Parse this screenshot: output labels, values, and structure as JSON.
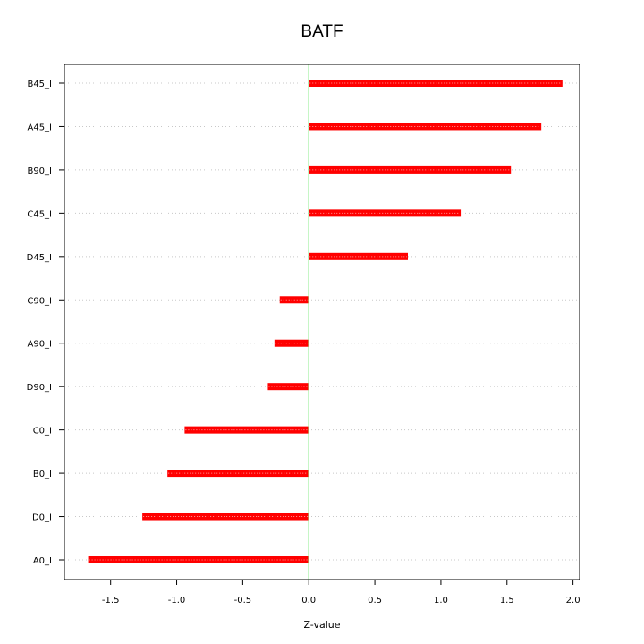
{
  "chart_data": {
    "type": "bar",
    "orientation": "horizontal",
    "title": "BATF",
    "xlabel": "Z-value",
    "ylabel": "",
    "xlim": [
      -1.85,
      2.05
    ],
    "xticks": [
      -1.5,
      -1.0,
      -0.5,
      0.0,
      0.5,
      1.0,
      1.5,
      2.0
    ],
    "xtick_labels": [
      "-1.5",
      "-1.0",
      "-0.5",
      "0.0",
      "0.5",
      "1.0",
      "1.5",
      "2.0"
    ],
    "categories": [
      "B45_I",
      "A45_I",
      "B90_I",
      "C45_I",
      "D45_I",
      "C90_I",
      "A90_I",
      "D90_I",
      "C0_I",
      "B0_I",
      "D0_I",
      "A0_I"
    ],
    "values": [
      1.92,
      1.76,
      1.53,
      1.15,
      0.75,
      -0.22,
      -0.26,
      -0.31,
      -0.94,
      -1.07,
      -1.26,
      -1.67
    ],
    "grid": true,
    "zero_line": true,
    "colors": {
      "bar": "#ff0000",
      "zero_line": "#90ee90",
      "grid": "#c8c8c8",
      "axis": "#000000"
    }
  }
}
